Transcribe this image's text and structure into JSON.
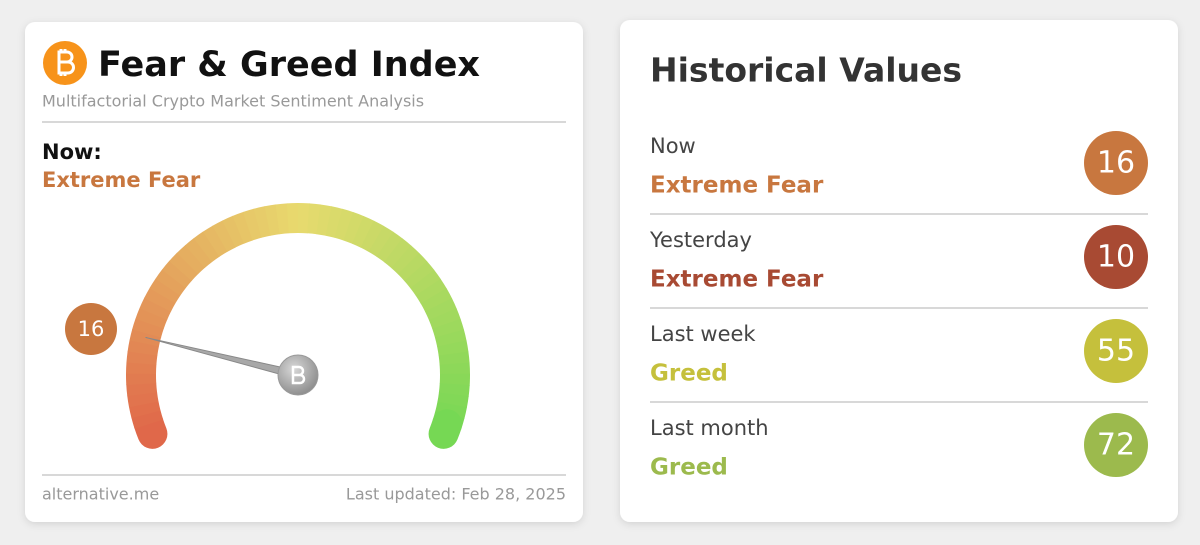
{
  "left_card": {
    "title": "Fear & Greed Index",
    "subtitle": "Multifactorial Crypto Market Sentiment Analysis",
    "now_label": "Now:",
    "now_classification": "Extreme Fear",
    "now_color": "#c8773f",
    "gauge": {
      "value": 16,
      "range": [
        0,
        100
      ],
      "color": "#c8773f"
    },
    "footer_source": "alternative.me",
    "footer_updated": "Last updated: Feb 28, 2025"
  },
  "right_card": {
    "title": "Historical Values",
    "rows": [
      {
        "period": "Now",
        "classification": "Extreme Fear",
        "value": 16,
        "color": "#c8773f"
      },
      {
        "period": "Yesterday",
        "classification": "Extreme Fear",
        "value": 10,
        "color": "#a84a33"
      },
      {
        "period": "Last week",
        "classification": "Greed",
        "value": 55,
        "color": "#c5c03c"
      },
      {
        "period": "Last month",
        "classification": "Greed",
        "value": 72,
        "color": "#9cba4d"
      }
    ]
  }
}
